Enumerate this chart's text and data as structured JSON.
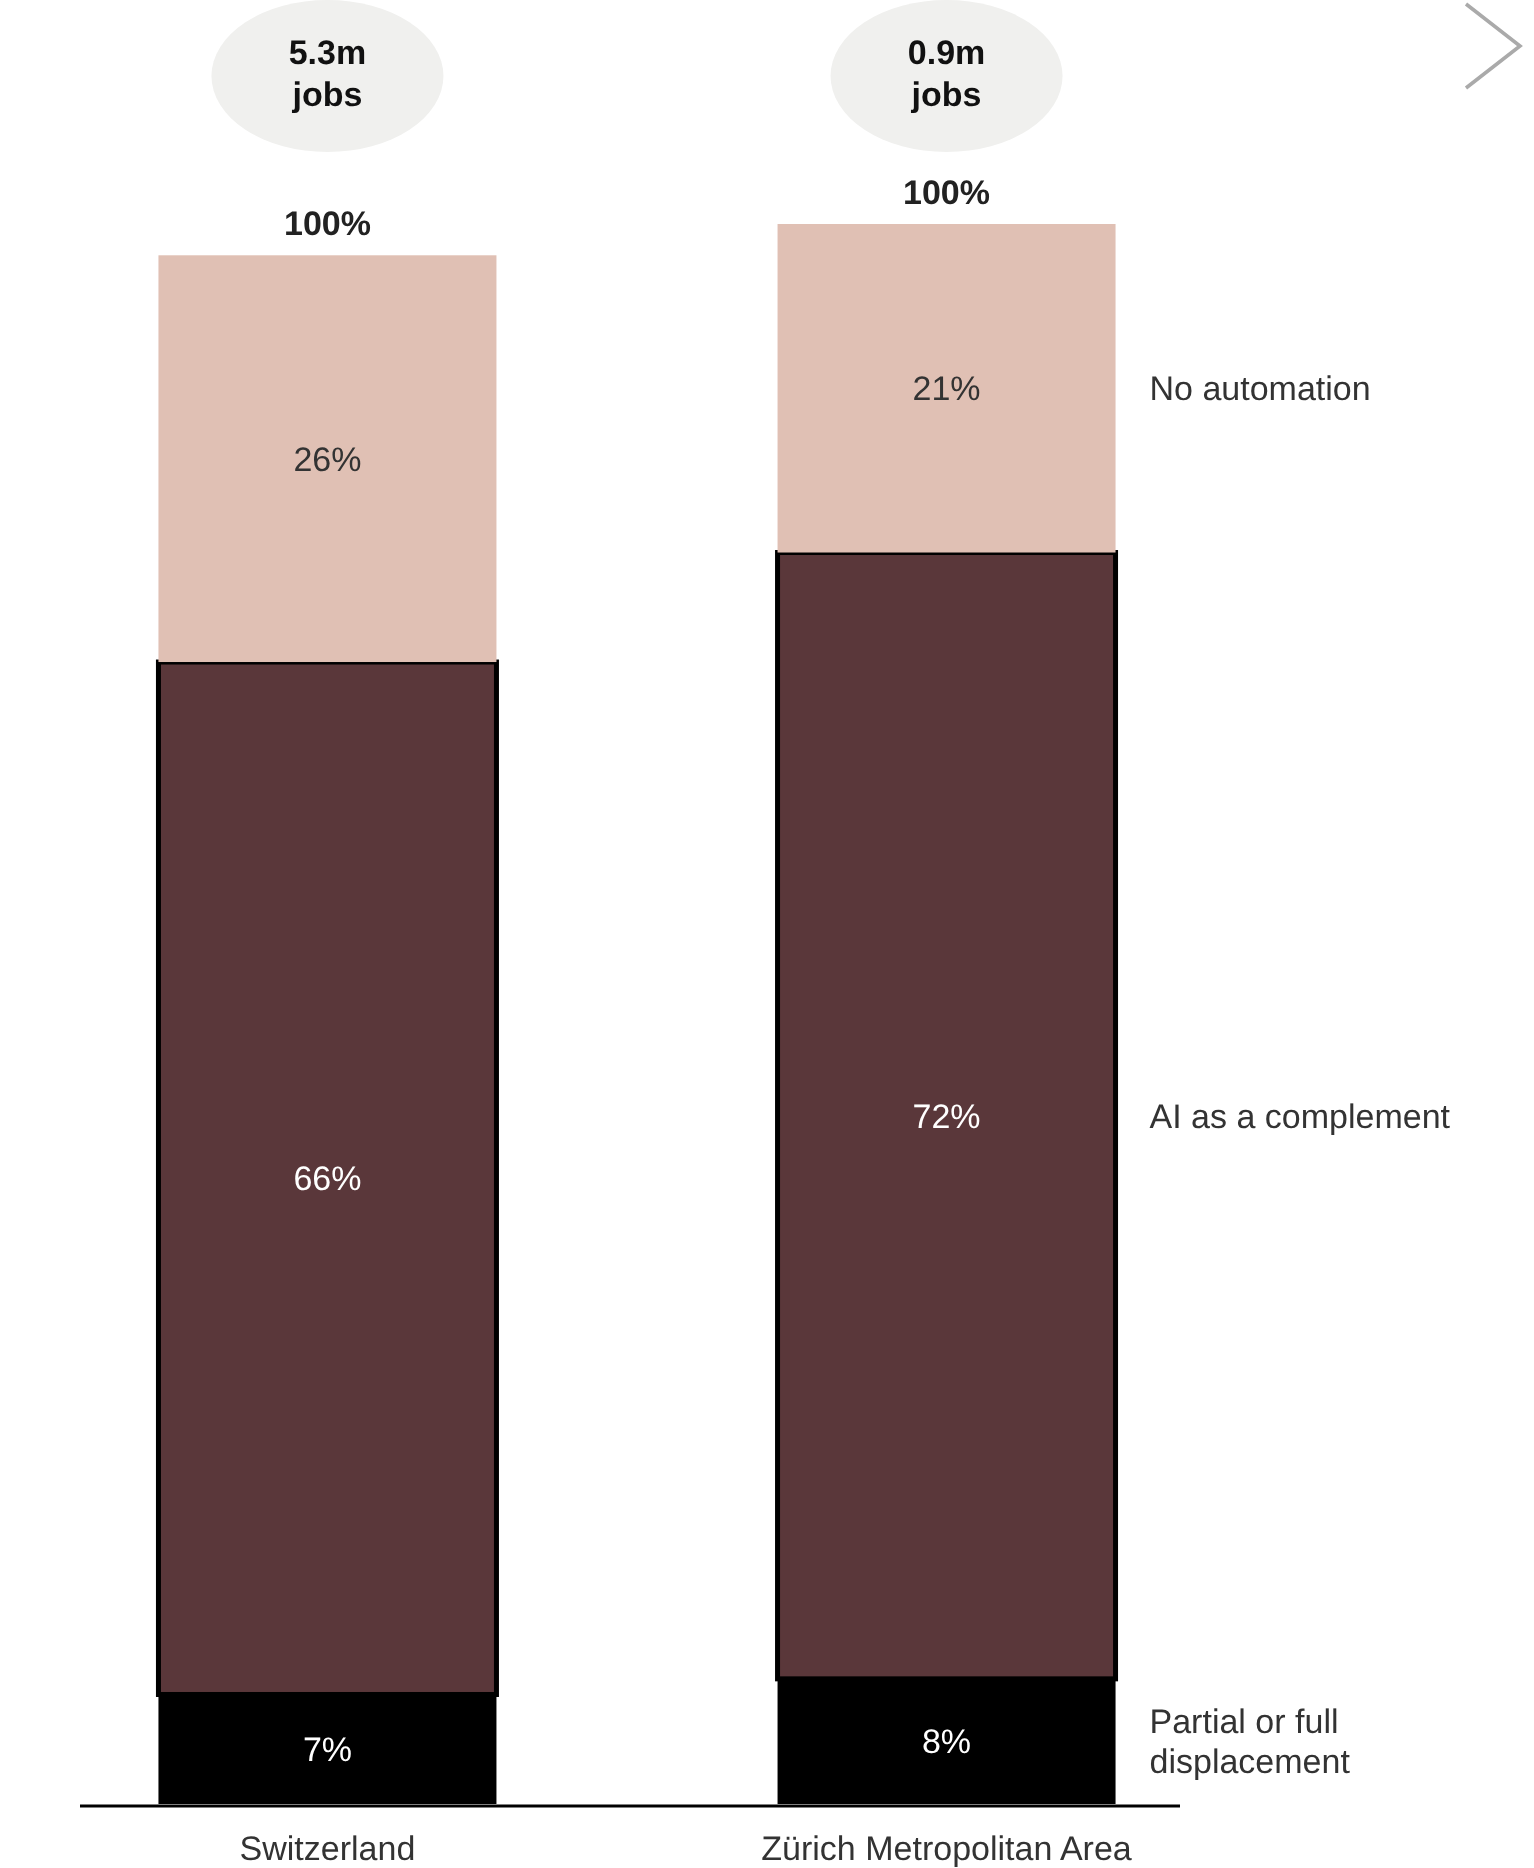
{
  "chart_data": {
    "type": "bar",
    "stacked": true,
    "categories": [
      "Switzerland",
      "Zürich Metropolitan Area"
    ],
    "series": [
      {
        "name": "Partial or full displacement",
        "color": "#000000",
        "values": [
          7,
          8
        ],
        "value_labels": [
          "7%",
          "8%"
        ]
      },
      {
        "name": "AI as a complement",
        "color": "#5a373a",
        "values": [
          66,
          72
        ],
        "value_labels": [
          "66%",
          "72%"
        ]
      },
      {
        "name": "No automation",
        "color": "#e0c0b4",
        "values": [
          26,
          21
        ],
        "value_labels": [
          "26%",
          "21%"
        ]
      }
    ],
    "totals": [
      "100%",
      "100%"
    ],
    "annotations": [
      "5.3m jobs",
      "0.9m jobs"
    ]
  }
}
